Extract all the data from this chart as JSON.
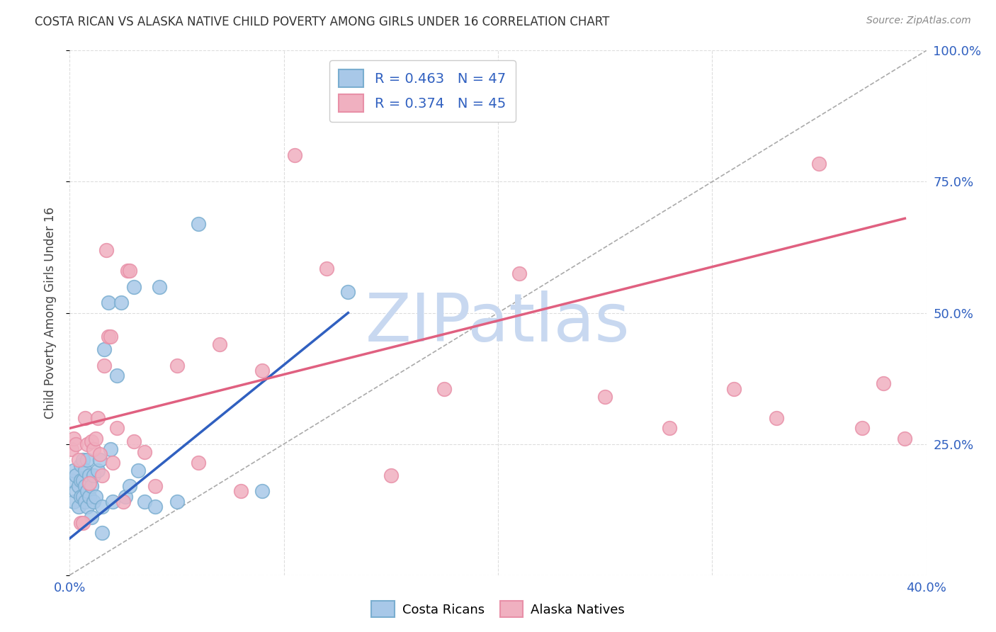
{
  "title": "COSTA RICAN VS ALASKA NATIVE CHILD POVERTY AMONG GIRLS UNDER 16 CORRELATION CHART",
  "source": "Source: ZipAtlas.com",
  "ylabel": "Child Poverty Among Girls Under 16",
  "xlim": [
    0.0,
    0.4
  ],
  "ylim": [
    0.0,
    1.0
  ],
  "xticks": [
    0.0,
    0.1,
    0.2,
    0.3,
    0.4
  ],
  "yticks": [
    0.0,
    0.25,
    0.5,
    0.75,
    1.0
  ],
  "legend_r1": "0.463",
  "legend_n1": "47",
  "legend_r2": "0.374",
  "legend_n2": "45",
  "color_blue_fill": "#a8c8e8",
  "color_blue_edge": "#7aaed0",
  "color_pink_fill": "#f0b0c0",
  "color_pink_edge": "#e890a8",
  "color_blue_line": "#3060c0",
  "color_pink_line": "#e06080",
  "color_text_blue": "#3060c0",
  "color_text_pink": "#e06080",
  "color_diag": "#aaaaaa",
  "color_grid": "#dddddd",
  "watermark_text": "ZIPatlas",
  "watermark_color": "#c8d8f0",
  "background_color": "#ffffff",
  "blue_scatter_x": [
    0.001,
    0.002,
    0.002,
    0.003,
    0.003,
    0.004,
    0.004,
    0.005,
    0.005,
    0.005,
    0.006,
    0.006,
    0.006,
    0.007,
    0.007,
    0.007,
    0.008,
    0.008,
    0.008,
    0.009,
    0.009,
    0.01,
    0.01,
    0.011,
    0.011,
    0.012,
    0.013,
    0.014,
    0.015,
    0.015,
    0.016,
    0.018,
    0.019,
    0.02,
    0.022,
    0.024,
    0.026,
    0.028,
    0.03,
    0.032,
    0.035,
    0.04,
    0.042,
    0.05,
    0.06,
    0.09,
    0.13
  ],
  "blue_scatter_y": [
    0.18,
    0.14,
    0.2,
    0.16,
    0.19,
    0.13,
    0.17,
    0.15,
    0.18,
    0.21,
    0.15,
    0.18,
    0.22,
    0.14,
    0.17,
    0.2,
    0.13,
    0.16,
    0.22,
    0.15,
    0.19,
    0.11,
    0.17,
    0.14,
    0.19,
    0.15,
    0.2,
    0.22,
    0.08,
    0.13,
    0.43,
    0.52,
    0.24,
    0.14,
    0.38,
    0.52,
    0.15,
    0.17,
    0.55,
    0.2,
    0.14,
    0.13,
    0.55,
    0.14,
    0.67,
    0.16,
    0.54
  ],
  "pink_scatter_x": [
    0.001,
    0.002,
    0.003,
    0.004,
    0.005,
    0.006,
    0.007,
    0.008,
    0.009,
    0.01,
    0.011,
    0.012,
    0.013,
    0.014,
    0.015,
    0.016,
    0.017,
    0.018,
    0.019,
    0.02,
    0.022,
    0.025,
    0.027,
    0.028,
    0.03,
    0.035,
    0.04,
    0.05,
    0.06,
    0.07,
    0.08,
    0.09,
    0.105,
    0.12,
    0.15,
    0.175,
    0.21,
    0.25,
    0.28,
    0.31,
    0.33,
    0.35,
    0.37,
    0.38,
    0.39
  ],
  "pink_scatter_y": [
    0.24,
    0.26,
    0.25,
    0.22,
    0.1,
    0.1,
    0.3,
    0.25,
    0.175,
    0.255,
    0.24,
    0.26,
    0.3,
    0.23,
    0.19,
    0.4,
    0.62,
    0.455,
    0.455,
    0.215,
    0.28,
    0.14,
    0.58,
    0.58,
    0.255,
    0.235,
    0.17,
    0.4,
    0.215,
    0.44,
    0.16,
    0.39,
    0.8,
    0.585,
    0.19,
    0.355,
    0.575,
    0.34,
    0.28,
    0.355,
    0.3,
    0.785,
    0.28,
    0.365,
    0.26
  ],
  "blue_line_x": [
    0.0,
    0.13
  ],
  "blue_line_y": [
    0.07,
    0.5
  ],
  "pink_line_x": [
    0.0,
    0.39
  ],
  "pink_line_y": [
    0.28,
    0.68
  ],
  "diag_line_x": [
    0.0,
    0.4
  ],
  "diag_line_y": [
    0.0,
    1.0
  ]
}
